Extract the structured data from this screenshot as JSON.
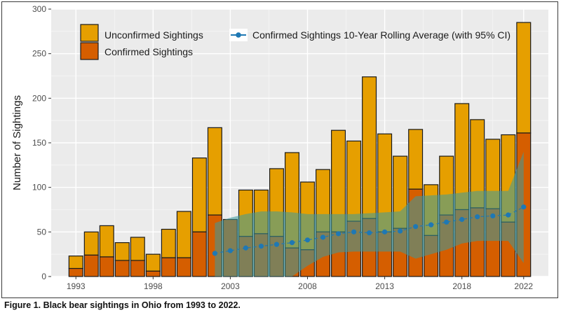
{
  "caption": "Figure 1. Black bear sightings in Ohio from 1993 to 2022.",
  "chart_data": {
    "type": "bar",
    "stacked": true,
    "ylabel": "Number of Sightings",
    "xlabel": "",
    "ylim": [
      0,
      300
    ],
    "xlim": [
      1991.4,
      2023.6
    ],
    "y_ticks": [
      0,
      50,
      100,
      150,
      200,
      250,
      300
    ],
    "x_ticks": [
      1993,
      1998,
      2003,
      2008,
      2013,
      2018,
      2022
    ],
    "grid": true,
    "legend_position": "top-left",
    "years": [
      1993,
      1994,
      1995,
      1996,
      1997,
      1998,
      1999,
      2000,
      2001,
      2002,
      2003,
      2004,
      2005,
      2006,
      2007,
      2008,
      2009,
      2010,
      2011,
      2012,
      2013,
      2014,
      2015,
      2016,
      2017,
      2018,
      2019,
      2020,
      2021,
      2022
    ],
    "series": [
      {
        "name": "Confirmed Sightings",
        "color": "#d55e00",
        "values": [
          9,
          24,
          22,
          18,
          18,
          6,
          21,
          21,
          50,
          69,
          64,
          45,
          48,
          45,
          32,
          30,
          50,
          50,
          62,
          65,
          50,
          54,
          98,
          46,
          69,
          75,
          77,
          76,
          61,
          161
        ]
      },
      {
        "name": "Unconfirmed Sightings",
        "color": "#e69f00",
        "values": [
          14,
          26,
          35,
          20,
          26,
          19,
          32,
          52,
          83,
          98,
          0,
          52,
          49,
          76,
          107,
          76,
          70,
          114,
          90,
          159,
          110,
          81,
          67,
          57,
          66,
          119,
          99,
          78,
          98,
          124
        ]
      }
    ],
    "rolling_average": {
      "name": "Confirmed Sightings 10-Year Rolling Average (with 95% CI)",
      "color": "#1f78b4",
      "ci_color": "#3a9a9e",
      "years": [
        2002,
        2003,
        2004,
        2005,
        2006,
        2007,
        2008,
        2009,
        2010,
        2011,
        2012,
        2013,
        2014,
        2015,
        2016,
        2017,
        2018,
        2019,
        2020,
        2021,
        2022
      ],
      "values": [
        26,
        29,
        32,
        34,
        36,
        38,
        41,
        44,
        48,
        50,
        49,
        50,
        51,
        56,
        58,
        61,
        64,
        67,
        68,
        69,
        78
      ],
      "ci_lower": [
        0,
        0,
        0,
        0,
        0,
        0,
        12,
        22,
        27,
        28,
        28,
        28,
        28,
        20,
        25,
        30,
        37,
        40,
        40,
        40,
        15
      ],
      "ci_upper": [
        60,
        66,
        70,
        73,
        73,
        72,
        70,
        70,
        70,
        70,
        71,
        72,
        73,
        90,
        91,
        92,
        94,
        96,
        96,
        96,
        140
      ]
    }
  },
  "legend": [
    {
      "label": "Unconfirmed Sightings",
      "icon": "box",
      "color": "#e69f00"
    },
    {
      "label": "Confirmed Sightings",
      "icon": "box",
      "color": "#d55e00"
    },
    {
      "label": "Confirmed Sightings 10-Year Rolling Average (with 95% CI)",
      "icon": "line-point",
      "color": "#1f78b4"
    }
  ]
}
